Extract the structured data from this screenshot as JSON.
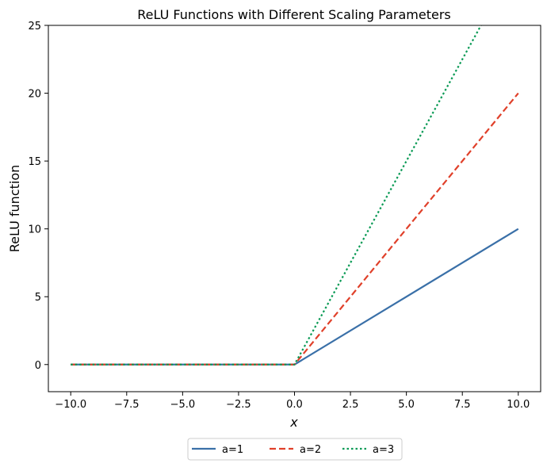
{
  "chart_data": {
    "type": "line",
    "title": "ReLU Functions with Different Scaling Parameters",
    "xlabel": "x",
    "ylabel": "ReLU function",
    "xlim": [
      -11,
      11
    ],
    "ylim": [
      -2,
      25
    ],
    "xticks": [
      -10.0,
      -7.5,
      -5.0,
      -2.5,
      0.0,
      2.5,
      5.0,
      7.5,
      10.0
    ],
    "xtick_labels": [
      "−10.0",
      "−7.5",
      "−5.0",
      "−2.5",
      "0.0",
      "2.5",
      "5.0",
      "7.5",
      "10.0"
    ],
    "yticks": [
      0,
      5,
      10,
      15,
      20,
      25
    ],
    "ytick_labels": [
      "0",
      "5",
      "10",
      "15",
      "20",
      "25"
    ],
    "grid": false,
    "legend_position": "bottom-center",
    "series": [
      {
        "name": "a=1",
        "color": "#3a70a8",
        "style": "solid",
        "x": [
          -10,
          0,
          10
        ],
        "y": [
          0,
          0,
          10
        ]
      },
      {
        "name": "a=2",
        "color": "#e0402a",
        "style": "dashed",
        "x": [
          -10,
          0,
          10
        ],
        "y": [
          0,
          0,
          20
        ]
      },
      {
        "name": "a=3",
        "color": "#0a9a55",
        "style": "dotted",
        "x": [
          -10,
          0,
          10
        ],
        "y": [
          0,
          0,
          30
        ]
      }
    ]
  }
}
